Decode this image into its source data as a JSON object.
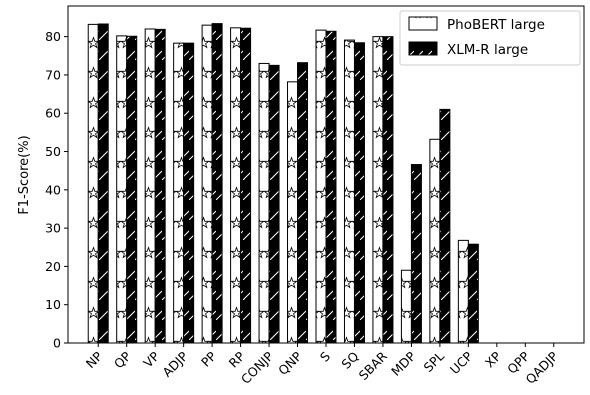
{
  "chart_data": {
    "type": "bar",
    "title": "",
    "xlabel": "",
    "ylabel": "F1-Score(%)",
    "ylim": [
      0,
      88
    ],
    "yticks": [
      0,
      10,
      20,
      30,
      40,
      50,
      60,
      70,
      80
    ],
    "grid": false,
    "legend_position": "top-right",
    "categories": [
      "NP",
      "QP",
      "VP",
      "ADJP",
      "PP",
      "RP",
      "CONJP",
      "QNP",
      "S",
      "SQ",
      "SBAR",
      "MDP",
      "SPL",
      "UCP",
      "XP",
      "QPP",
      "QADJP"
    ],
    "series": [
      {
        "name": "PhoBERT large",
        "style": "white-hatched-star",
        "color": "#ffffff",
        "values": [
          83.2,
          80.2,
          82.0,
          78.3,
          83.0,
          82.3,
          73.0,
          68.2,
          81.7,
          79.1,
          80.0,
          19.0,
          53.2,
          26.8,
          0,
          0,
          0
        ]
      },
      {
        "name": "XLM-R large",
        "style": "black-hatched-slash",
        "color": "#000000",
        "values": [
          83.3,
          80.1,
          81.9,
          78.3,
          83.4,
          82.2,
          72.5,
          73.2,
          81.4,
          78.4,
          80.0,
          46.6,
          61.0,
          25.8,
          0,
          0,
          0
        ]
      }
    ]
  }
}
